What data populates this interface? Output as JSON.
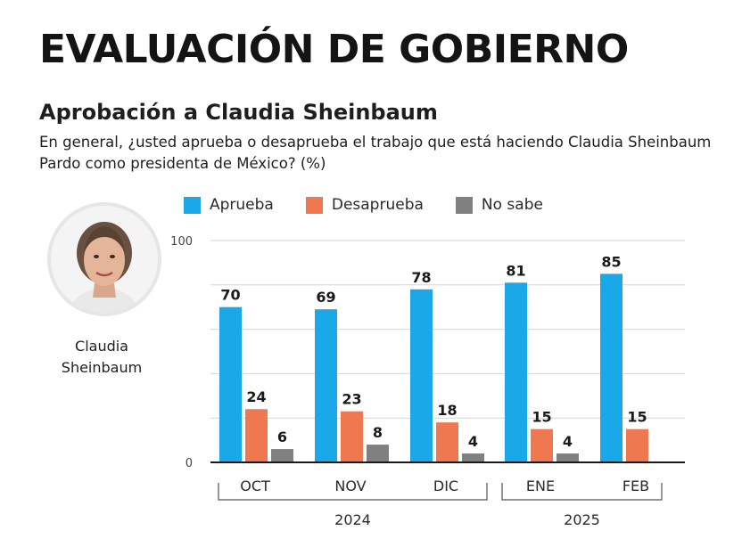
{
  "header": {
    "title": "EVALUACIÓN DE GOBIERNO",
    "subtitle": "Aprobación a Claudia Sheinbaum",
    "question": "En general, ¿usted aprueba o desaprueba el trabajo que está haciendo Claudia Sheinbaum Pardo como presidenta de México? (%)"
  },
  "person": {
    "name_line1": "Claudia",
    "name_line2": "Sheinbaum"
  },
  "colors": {
    "aprueba": "#1aa8e8",
    "desaprueba": "#f07850",
    "no_sabe": "#808080"
  },
  "chart_data": {
    "type": "bar",
    "title": "Aprobación a Claudia Sheinbaum",
    "ylabel": "%",
    "ylim": [
      0,
      100
    ],
    "yticks": [
      0,
      100
    ],
    "grid": true,
    "legend_position": "top",
    "categories": [
      "OCT",
      "NOV",
      "DIC",
      "ENE",
      "FEB"
    ],
    "series": [
      {
        "name": "Aprueba",
        "color": "#1aa8e8",
        "values": [
          70,
          69,
          78,
          81,
          85
        ]
      },
      {
        "name": "Desaprueba",
        "color": "#f07850",
        "values": [
          24,
          23,
          18,
          15,
          15
        ]
      },
      {
        "name": "No sabe",
        "color": "#808080",
        "values": [
          6,
          8,
          4,
          4,
          null
        ]
      }
    ],
    "year_groups": [
      {
        "label": "2024",
        "categories": [
          "OCT",
          "NOV",
          "DIC"
        ]
      },
      {
        "label": "2025",
        "categories": [
          "ENE",
          "FEB"
        ]
      }
    ]
  }
}
